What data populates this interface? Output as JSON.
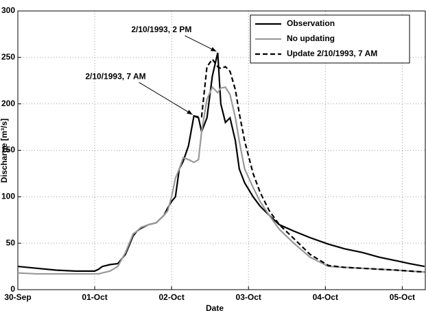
{
  "chart_data": {
    "type": "line",
    "x_label": "Date",
    "y_label": "Discharge [m³/s]",
    "x": [
      0,
      0.25,
      0.5,
      0.75,
      1.0,
      1.05,
      1.1,
      1.2,
      1.3,
      1.4,
      1.5,
      1.55,
      1.6,
      1.7,
      1.8,
      1.9,
      1.95,
      2.0,
      2.05,
      2.1,
      2.15,
      2.22,
      2.29,
      2.35,
      2.39,
      2.46,
      2.53,
      2.6,
      2.64,
      2.7,
      2.76,
      2.83,
      2.88,
      2.95,
      3.06,
      3.15,
      3.27,
      3.4,
      3.59,
      3.8,
      4.04,
      4.25,
      4.48,
      4.7,
      4.93,
      5.1,
      5.29
    ],
    "series": [
      {
        "name": "Observation",
        "color": "#000000",
        "dash": "solid",
        "values": [
          25,
          23,
          21,
          20,
          20,
          22,
          25,
          27,
          28,
          38,
          58,
          63,
          66,
          70,
          72,
          80,
          88,
          95,
          100,
          130,
          138,
          155,
          187,
          185,
          170,
          185,
          230,
          255,
          200,
          180,
          185,
          160,
          130,
          115,
          100,
          90,
          80,
          70,
          63,
          56,
          49,
          44,
          40,
          35,
          31,
          28,
          25
        ]
      },
      {
        "name": "No updating",
        "color": "#999999",
        "dash": "solid",
        "values": [
          18,
          17,
          17,
          17,
          17,
          17,
          18,
          20,
          25,
          40,
          60,
          63,
          67,
          70,
          72,
          80,
          85,
          100,
          120,
          130,
          142,
          140,
          137,
          140,
          170,
          205,
          218,
          212,
          217,
          218,
          210,
          185,
          160,
          130,
          110,
          95,
          80,
          65,
          50,
          35,
          25,
          24,
          23,
          22,
          21,
          20,
          19
        ]
      },
      {
        "name": "Update 2/10/1993, 7 AM",
        "color": "#000000",
        "dash": "dashed",
        "values": [
          null,
          null,
          null,
          null,
          null,
          null,
          null,
          null,
          null,
          null,
          null,
          null,
          null,
          null,
          null,
          null,
          null,
          null,
          null,
          null,
          null,
          null,
          187,
          186,
          186,
          240,
          248,
          240,
          238,
          240,
          235,
          215,
          190,
          160,
          125,
          105,
          85,
          70,
          55,
          38,
          26,
          24,
          23,
          22,
          21,
          20,
          19
        ]
      }
    ],
    "xlim": [
      0,
      5.3
    ],
    "xticks": [
      {
        "value": 0,
        "label": "30-Sep"
      },
      {
        "value": 1,
        "label": "01-Oct"
      },
      {
        "value": 2,
        "label": "02-Oct"
      },
      {
        "value": 3,
        "label": "03-Oct"
      },
      {
        "value": 4,
        "label": "04-Oct"
      },
      {
        "value": 5,
        "label": "05-Oct"
      }
    ],
    "ylim": [
      0,
      300
    ],
    "yticks": [
      0,
      50,
      100,
      150,
      200,
      250,
      300
    ],
    "grid": true,
    "legend": "upper right",
    "annotations": [
      {
        "text": "2/10/1993, 2 PM",
        "x": 2.6,
        "y": 255
      },
      {
        "text": "2/10/1993, 7 AM",
        "x": 2.29,
        "y": 187
      }
    ]
  }
}
